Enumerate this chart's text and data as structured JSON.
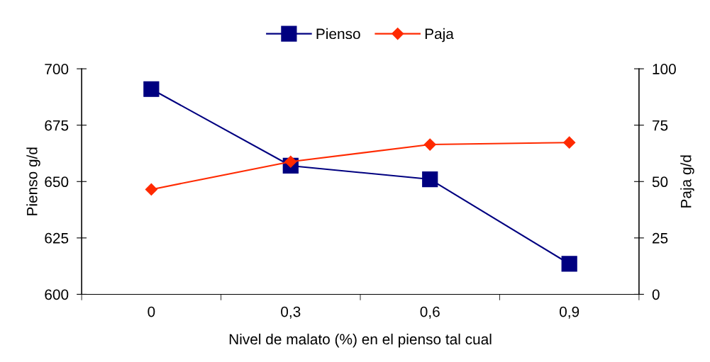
{
  "chart_data": {
    "type": "line",
    "xlabel": "Nivel de malato (%) en el pienso tal cual",
    "ylabel": "Pienso g/d",
    "y2label": "Paja g/d",
    "categories": [
      "0",
      "0,3",
      "0,6",
      "0,9"
    ],
    "series": [
      {
        "name": "Pienso",
        "color": "#000080",
        "marker": "square",
        "values": [
          691,
          657,
          651,
          613.5
        ]
      },
      {
        "name": "Paja",
        "color": "#ff2a00",
        "marker": "diamond",
        "axis": "y2",
        "values": [
          46.5,
          58.8,
          66.4,
          67.3
        ]
      }
    ],
    "ylim": [
      600,
      700
    ],
    "yticks": [
      600,
      625,
      650,
      675,
      700
    ],
    "y2lim": [
      0,
      100
    ],
    "y2ticks": [
      0,
      25,
      50,
      75,
      100
    ],
    "grid": false,
    "legend": "top",
    "line_style": "solid"
  }
}
